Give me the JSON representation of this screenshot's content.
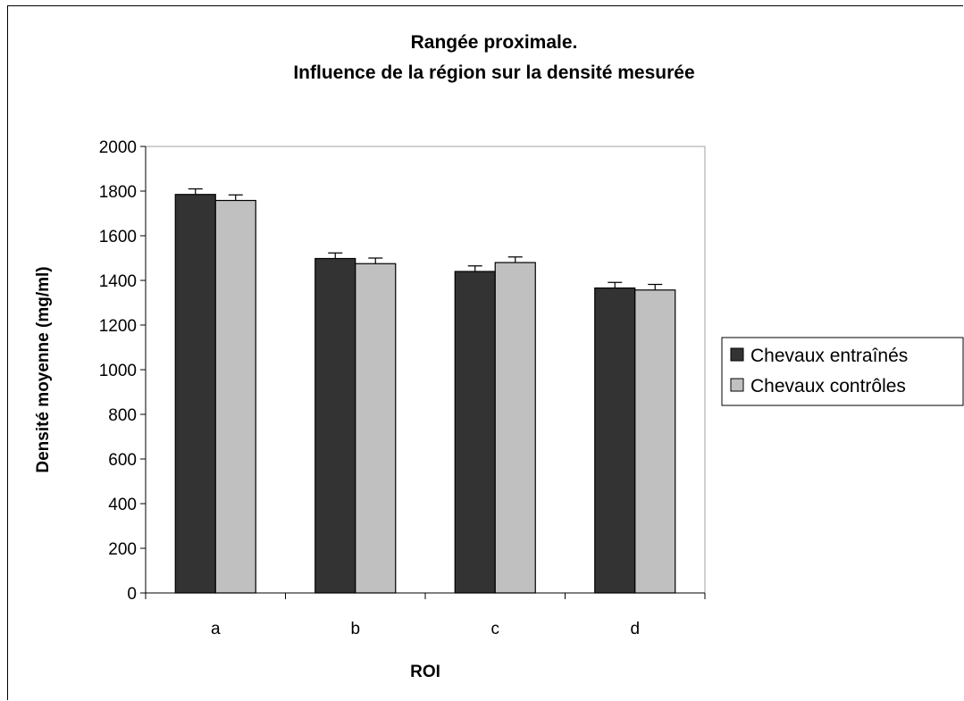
{
  "chart_data": {
    "type": "bar",
    "title": [
      "Rangée proximale.",
      "Influence de la région sur la densité mesurée"
    ],
    "xlabel": "ROI",
    "ylabel": "Densité moyenne (mg/ml)",
    "categories": [
      "a",
      "b",
      "c",
      "d"
    ],
    "ylim": [
      0,
      2000
    ],
    "yticks": [
      0,
      200,
      400,
      600,
      800,
      1000,
      1200,
      1400,
      1600,
      1800,
      2000
    ],
    "grid": false,
    "legend_position": "right",
    "series": [
      {
        "name": "Chevaux entraînés",
        "color": "#333333",
        "values": [
          1785,
          1498,
          1440,
          1366
        ],
        "errors": [
          25,
          25,
          25,
          25
        ]
      },
      {
        "name": "Chevaux contrôles",
        "color": "#c0c0c0",
        "values": [
          1758,
          1475,
          1480,
          1357
        ],
        "errors": [
          25,
          25,
          25,
          25
        ]
      }
    ]
  }
}
